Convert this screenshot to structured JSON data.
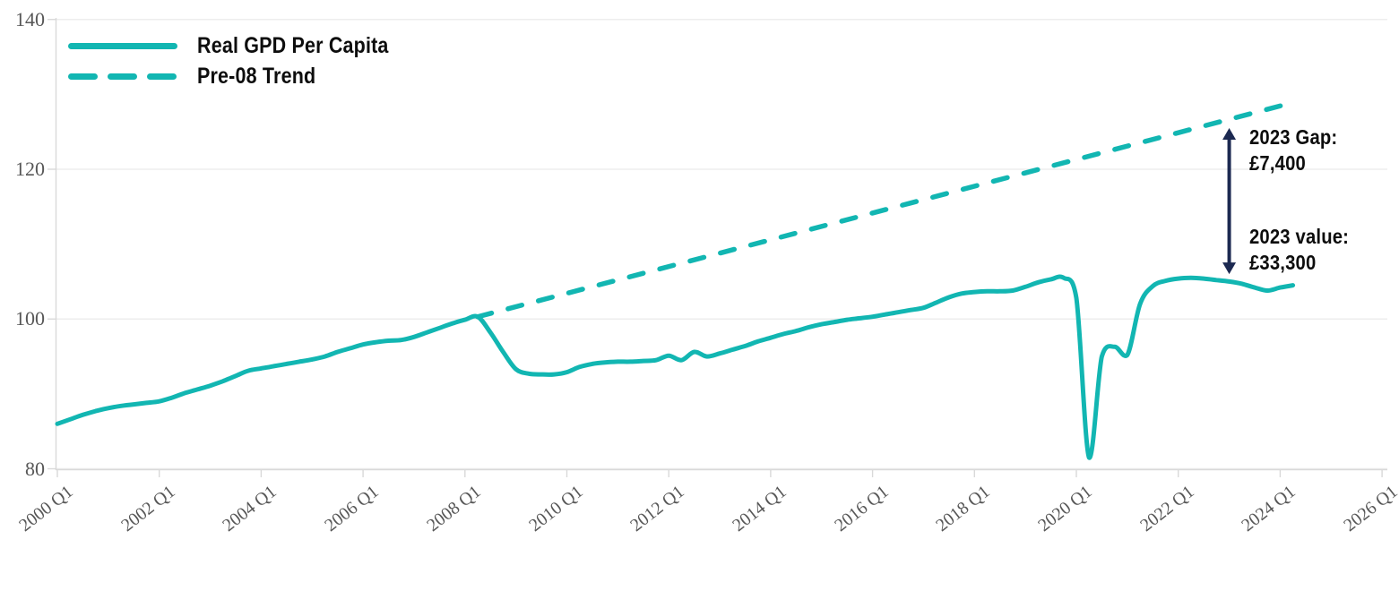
{
  "chart_data": {
    "type": "line",
    "title": "",
    "legend_position": "top-left",
    "grid": "horizontal",
    "x_axis": {
      "tick_labels": [
        "2000 Q1",
        "2002 Q1",
        "2004 Q1",
        "2006 Q1",
        "2008 Q1",
        "2010 Q1",
        "2012 Q1",
        "2014 Q1",
        "2016 Q1",
        "2018 Q1",
        "2020 Q1",
        "2022 Q1",
        "2024 Q1",
        "2026 Q1"
      ],
      "range_years": [
        2000,
        2026.1
      ]
    },
    "y_axis": {
      "tick_labels": [
        "140",
        "120",
        "100",
        "80"
      ],
      "tick_values": [
        140,
        120,
        100,
        80
      ],
      "range": [
        80,
        140
      ]
    },
    "series": [
      {
        "name": "Real GPD Per Capita",
        "style": "solid",
        "x_start": 2000.0,
        "x_step": 0.25,
        "values": [
          86.0,
          86.6,
          87.2,
          87.7,
          88.1,
          88.4,
          88.6,
          88.8,
          89.0,
          89.5,
          90.1,
          90.6,
          91.1,
          91.7,
          92.4,
          93.1,
          93.4,
          93.7,
          94.0,
          94.3,
          94.6,
          95.0,
          95.6,
          96.1,
          96.6,
          96.9,
          97.1,
          97.2,
          97.6,
          98.2,
          98.8,
          99.4,
          99.9,
          100.3,
          98.2,
          95.6,
          93.3,
          92.7,
          92.6,
          92.6,
          92.9,
          93.6,
          94.0,
          94.2,
          94.3,
          94.3,
          94.4,
          94.5,
          95.1,
          94.5,
          95.6,
          95.0,
          95.4,
          95.9,
          96.4,
          97.0,
          97.5,
          98.0,
          98.4,
          98.9,
          99.3,
          99.6,
          99.9,
          100.1,
          100.3,
          100.6,
          100.9,
          101.2,
          101.5,
          102.2,
          102.9,
          103.4,
          103.6,
          103.7,
          103.7,
          103.8,
          104.3,
          104.9,
          105.3,
          105.5,
          102.8,
          81.5,
          95.0,
          96.3,
          95.2,
          102.0,
          104.4,
          105.1,
          105.4,
          105.5,
          105.4,
          105.2,
          105.0,
          104.7,
          104.2,
          103.8,
          104.2,
          104.5
        ]
      },
      {
        "name": "Pre-08 Trend",
        "style": "dashed",
        "points": [
          {
            "x": 2008.25,
            "y": 100.3
          },
          {
            "x": 2024.25,
            "y": 128.9
          }
        ]
      }
    ],
    "annotations": {
      "gap": {
        "line1": "2023 Gap:",
        "line2": "£7,400",
        "arrow_x_year": 2023.0,
        "arrow_top_value": 125.5,
        "arrow_bottom_value": 106.0
      },
      "value": {
        "line1": "2023 value:",
        "line2": "£33,300"
      }
    },
    "colors": {
      "line": "#12b6b2",
      "arrow": "#1c2951",
      "grid": "#ededed",
      "axis": "#d9d9d9",
      "tick_text": "#575757",
      "label_text": "#0d0d0d"
    }
  }
}
